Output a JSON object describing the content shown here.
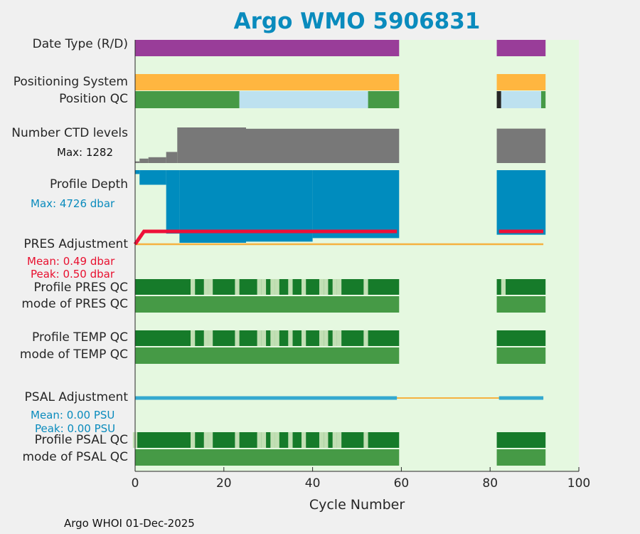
{
  "title": "Argo WMO 5906831",
  "footer": "Argo WHOI 01-Dec-2025",
  "colors": {
    "plot_bg": "#e5f8e0",
    "data_type": "#993d99",
    "positioning": "#ffb640",
    "pos_qc_good": "#469a46",
    "pos_qc_interp": "#bde1ef",
    "pos_qc_dark": "#262626",
    "ctd": "#787878",
    "depth": "#008cbe",
    "pres_adj": "#ee1038",
    "baseline": "#f5b240",
    "qc_dark_green": "#167b2a",
    "qc_light": "#c2dfb4",
    "qc_mode": "#469a46",
    "psal_adj": "#34a9cf",
    "title": "#0a8bbd"
  },
  "rows": {
    "data_type": "Date Type (R/D)",
    "positioning": "Positioning System",
    "position_qc": "Position QC",
    "ctd_levels": "Number CTD levels",
    "ctd_max": "Max: 1282",
    "profile_depth": "Profile Depth",
    "depth_max": "Max: 4726 dbar",
    "pres_adjustment": "PRES Adjustment",
    "pres_mean": "Mean: 0.49 dbar",
    "pres_peak": "Peak: 0.50 dbar",
    "profile_pres_qc": "Profile PRES QC",
    "mode_pres_qc": "mode of PRES QC",
    "profile_temp_qc": "Profile TEMP QC",
    "mode_temp_qc": "mode of TEMP QC",
    "psal_adjustment": "PSAL Adjustment",
    "psal_mean": "Mean: 0.00 PSU",
    "psal_peak": "Peak: 0.00 PSU",
    "profile_psal_qc": "Profile PSAL QC",
    "mode_psal_qc": "mode of PSAL QC"
  },
  "chart_data": {
    "type": "bar",
    "xlabel": "Cycle Number",
    "xlim": [
      0,
      100
    ],
    "xticks": [
      0,
      20,
      40,
      60,
      80,
      100
    ],
    "cycle_segments": [
      [
        0,
        59
      ],
      [
        82,
        92
      ]
    ],
    "position_qc_segments": [
      {
        "from": 0,
        "to": 23.5,
        "flag": "good"
      },
      {
        "from": 23.5,
        "to": 52.5,
        "flag": "interp"
      },
      {
        "from": 52.5,
        "to": 59.5,
        "flag": "good"
      },
      {
        "from": 81.5,
        "to": 82.5,
        "flag": "dark"
      },
      {
        "from": 82.5,
        "to": 91.5,
        "flag": "interp"
      },
      {
        "from": 91.5,
        "to": 92.5,
        "flag": "good"
      }
    ],
    "ctd_levels": {
      "max": 1282,
      "steps": [
        {
          "from": 0,
          "to": 1,
          "value": 60
        },
        {
          "from": 1,
          "to": 3,
          "value": 160
        },
        {
          "from": 3,
          "to": 7,
          "value": 210
        },
        {
          "from": 7,
          "to": 9.5,
          "value": 400
        },
        {
          "from": 9.5,
          "to": 25,
          "value": 1282
        },
        {
          "from": 25,
          "to": 59.5,
          "value": 1235
        },
        {
          "from": 81.5,
          "to": 92.5,
          "value": 1240
        }
      ]
    },
    "profile_depth": {
      "max": 4726,
      "steps": [
        {
          "from": 0,
          "to": 1,
          "value": 250
        },
        {
          "from": 1,
          "to": 7,
          "value": 950
        },
        {
          "from": 7,
          "to": 10,
          "value": 4130
        },
        {
          "from": 10,
          "to": 25,
          "value": 4726
        },
        {
          "from": 25,
          "to": 40,
          "value": 4650
        },
        {
          "from": 40,
          "to": 59.5,
          "value": 4420
        },
        {
          "from": 81.5,
          "to": 92.5,
          "value": 4200
        }
      ]
    },
    "pres_adjustment": {
      "mean": 0.49,
      "peak": 0.5,
      "segments": [
        {
          "x": [
            0,
            2,
            59
          ],
          "y": [
            0.0,
            0.5,
            0.5
          ]
        },
        {
          "x": [
            82,
            92
          ],
          "y": [
            0.5,
            0.5
          ]
        }
      ]
    },
    "profile_qc_light_cycles": [
      13,
      16,
      17,
      23,
      28,
      29,
      31,
      32,
      35,
      38,
      42,
      43,
      45,
      46,
      52
    ],
    "psal_qc_light_cycles": [
      0,
      13,
      16,
      17,
      23,
      28,
      29,
      31,
      32,
      35,
      38,
      42,
      43,
      45,
      46,
      52
    ],
    "pres_qc_light_cycles_seg2": [
      83
    ],
    "temp_qc_light_cycles_seg2": [],
    "psal_adjustment": {
      "mean": 0.0,
      "peak": 0.0,
      "segments": [
        {
          "x": [
            0,
            59
          ],
          "y": [
            0,
            0
          ]
        },
        {
          "x": [
            82,
            92
          ],
          "y": [
            0,
            0
          ]
        }
      ]
    }
  }
}
